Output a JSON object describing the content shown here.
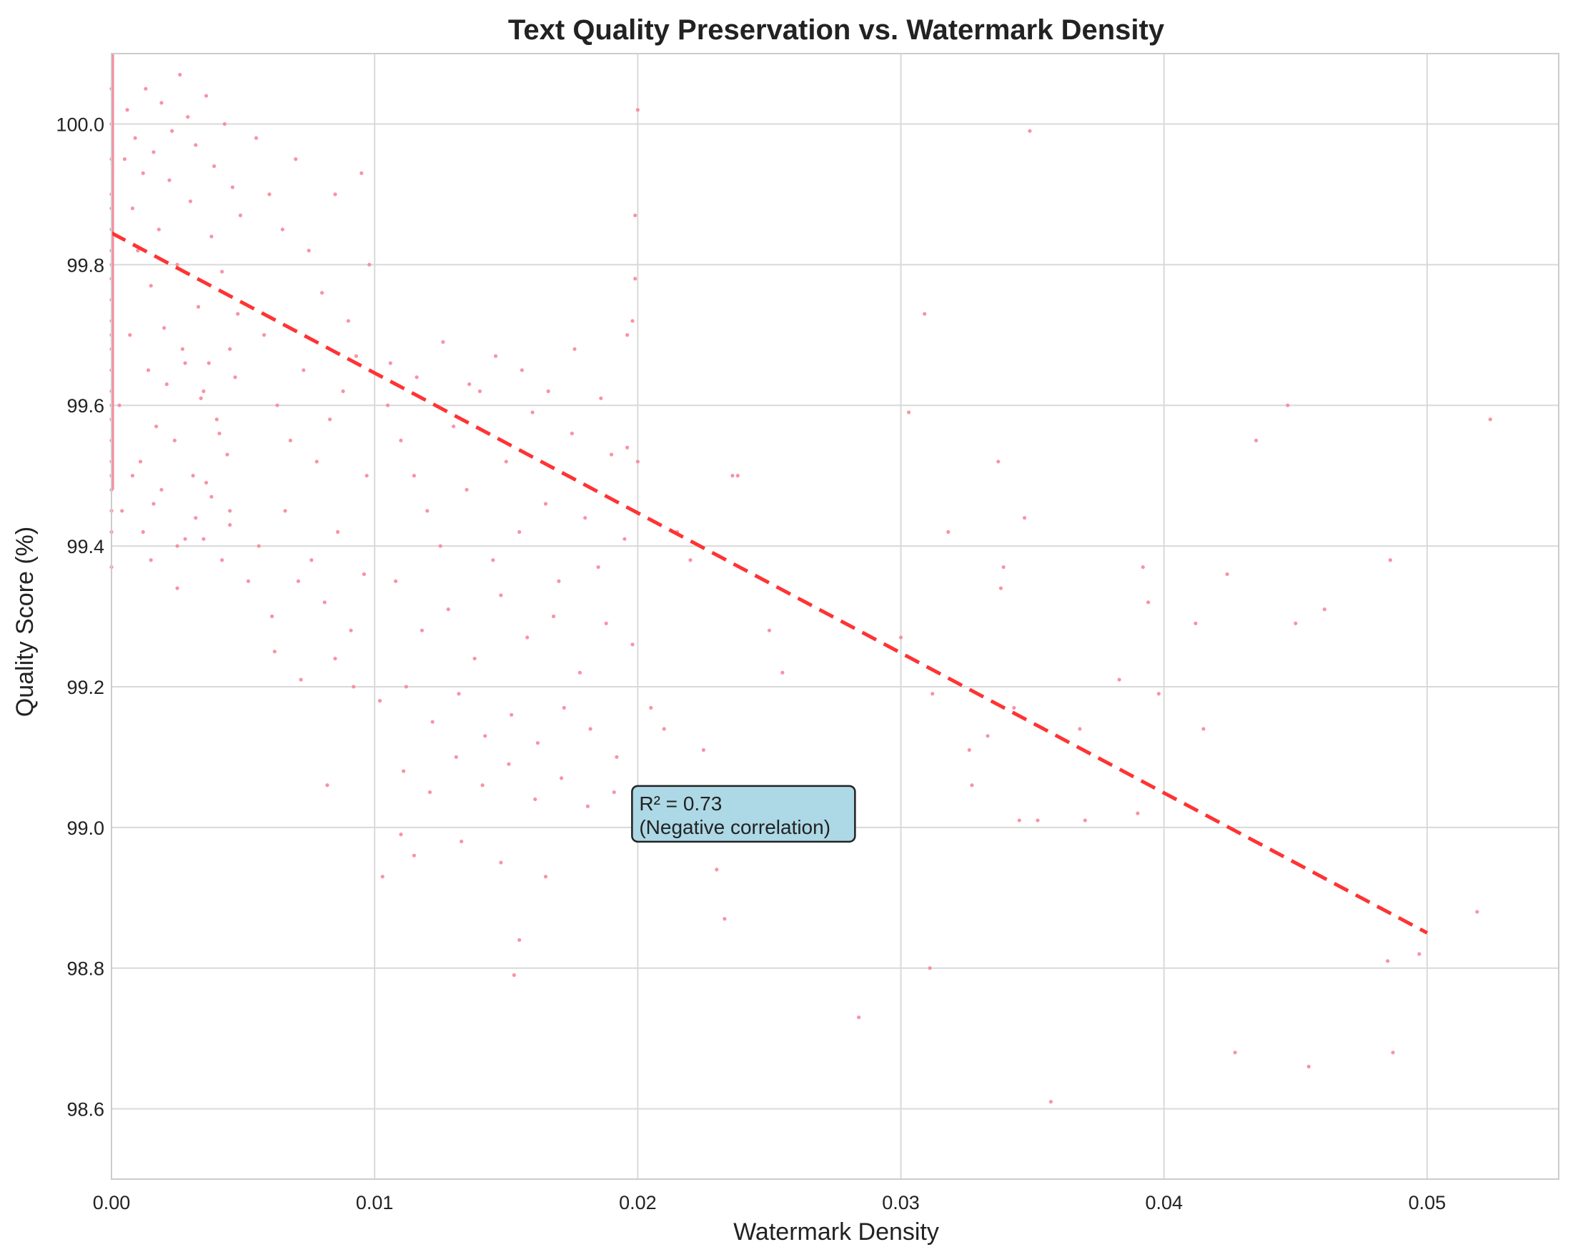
{
  "chart_data": {
    "type": "scatter",
    "title": "Text Quality Preservation vs. Watermark Density",
    "xlabel": "Watermark Density",
    "ylabel": "Quality Score (%)",
    "xlim": [
      0,
      0.055
    ],
    "ylim": [
      98.5,
      100.1
    ],
    "x_ticks": [
      0.0,
      0.01,
      0.02,
      0.03,
      0.04,
      0.05
    ],
    "x_tick_labels": [
      "0.00",
      "0.01",
      "0.02",
      "0.03",
      "0.04",
      "0.05"
    ],
    "y_ticks": [
      98.6,
      98.8,
      99.0,
      99.2,
      99.4,
      99.6,
      99.8,
      100.0
    ],
    "y_tick_labels": [
      "98.6",
      "98.8",
      "99.0",
      "99.2",
      "99.4",
      "99.6",
      "99.8",
      "100.0"
    ],
    "grid": true,
    "point_color": "#f7879a",
    "trend_color": "#ff3333",
    "annotation_bg": "#add8e6",
    "series": [
      {
        "kind": "points",
        "x": [
          0.0,
          0.0,
          0.0,
          0.0,
          0.0,
          0.0,
          0.0,
          0.0,
          0.0,
          0.0,
          0.0,
          0.0,
          0.0,
          0.0,
          0.0,
          0.0,
          0.0,
          0.0,
          0.0,
          0.0,
          0.0,
          0.0,
          0.0,
          0.0,
          0.0005,
          0.0008,
          0.001,
          0.0012,
          0.0015,
          0.0018,
          0.002,
          0.0022,
          0.0025,
          0.0028,
          0.003,
          0.0033,
          0.0035,
          0.0038,
          0.004,
          0.0042,
          0.0045,
          0.0048,
          0.0003,
          0.0007,
          0.0011,
          0.0014,
          0.0017,
          0.0021,
          0.0024,
          0.0027,
          0.0031,
          0.0034,
          0.0037,
          0.0041,
          0.0044,
          0.0047,
          0.0006,
          0.0009,
          0.0013,
          0.0016,
          0.0019,
          0.0023,
          0.0026,
          0.0029,
          0.0032,
          0.0036,
          0.0039,
          0.0043,
          0.0046,
          0.0049,
          0.0004,
          0.0012,
          0.0019,
          0.0025,
          0.0032,
          0.0038,
          0.0045,
          0.0008,
          0.0016,
          0.0028,
          0.0036,
          0.0042,
          0.0055,
          0.006,
          0.0065,
          0.007,
          0.0075,
          0.008,
          0.0085,
          0.009,
          0.0095,
          0.0098,
          0.0058,
          0.0063,
          0.0068,
          0.0073,
          0.0078,
          0.0083,
          0.0088,
          0.0093,
          0.0097,
          0.0056,
          0.0066,
          0.0076,
          0.0086,
          0.0096,
          0.0061,
          0.0071,
          0.0081,
          0.0091,
          0.0025,
          0.0035,
          0.0045,
          0.0052,
          0.0062,
          0.0072,
          0.0082,
          0.0092,
          0.0015,
          0.0085,
          0.0105,
          0.011,
          0.0115,
          0.012,
          0.0125,
          0.013,
          0.0135,
          0.014,
          0.0145,
          0.015,
          0.0155,
          0.016,
          0.0165,
          0.017,
          0.0175,
          0.018,
          0.0185,
          0.019,
          0.0195,
          0.0108,
          0.0118,
          0.0128,
          0.0138,
          0.0148,
          0.0158,
          0.0168,
          0.0178,
          0.0188,
          0.0198,
          0.0102,
          0.0112,
          0.0122,
          0.0132,
          0.0142,
          0.0152,
          0.0162,
          0.0172,
          0.0182,
          0.0192,
          0.0106,
          0.0116,
          0.0126,
          0.0136,
          0.0146,
          0.0156,
          0.0166,
          0.0176,
          0.0186,
          0.0196,
          0.0111,
          0.0121,
          0.0131,
          0.0141,
          0.0151,
          0.0161,
          0.0171,
          0.0181,
          0.0191,
          0.011,
          0.0115,
          0.0103,
          0.0155,
          0.0153,
          0.0133,
          0.0148,
          0.0165,
          0.02,
          0.0199,
          0.0199,
          0.0198,
          0.0196,
          0.02,
          0.0205,
          0.021,
          0.0215,
          0.022,
          0.0225,
          0.023,
          0.0233,
          0.0236,
          0.0238,
          0.025,
          0.0255,
          0.0284,
          0.03,
          0.0303,
          0.0309,
          0.0311,
          0.0312,
          0.0318,
          0.0326,
          0.0327,
          0.0333,
          0.0337,
          0.0338,
          0.0339,
          0.0343,
          0.0345,
          0.0347,
          0.0349,
          0.0352,
          0.0357,
          0.0368,
          0.037,
          0.0383,
          0.039,
          0.0392,
          0.0394,
          0.0398,
          0.0412,
          0.0415,
          0.0424,
          0.0427,
          0.0435,
          0.0447,
          0.045,
          0.0455,
          0.0461,
          0.0485,
          0.0486,
          0.0487,
          0.0497,
          0.0519,
          0.0524
        ],
        "y": [
          99.9,
          99.85,
          99.8,
          99.75,
          99.7,
          99.65,
          99.6,
          99.55,
          99.5,
          99.45,
          99.95,
          100.0,
          99.88,
          99.82,
          99.78,
          99.72,
          99.68,
          99.62,
          99.58,
          99.52,
          99.48,
          99.42,
          99.37,
          100.05,
          99.95,
          99.88,
          99.82,
          99.93,
          99.77,
          99.85,
          99.71,
          99.92,
          99.8,
          99.66,
          99.89,
          99.74,
          99.62,
          99.84,
          99.58,
          99.79,
          99.68,
          99.73,
          99.6,
          99.7,
          99.52,
          99.65,
          99.57,
          99.63,
          99.55,
          99.68,
          99.5,
          99.61,
          99.66,
          99.56,
          99.53,
          99.64,
          100.02,
          99.98,
          100.05,
          99.96,
          100.03,
          99.99,
          100.07,
          100.01,
          99.97,
          100.04,
          99.94,
          100.0,
          99.91,
          99.87,
          99.45,
          99.42,
          99.48,
          99.4,
          99.44,
          99.47,
          99.43,
          99.5,
          99.46,
          99.41,
          99.49,
          99.38,
          99.98,
          99.9,
          99.85,
          99.95,
          99.82,
          99.76,
          99.9,
          99.72,
          99.93,
          99.8,
          99.7,
          99.6,
          99.55,
          99.65,
          99.52,
          99.58,
          99.62,
          99.67,
          99.5,
          99.4,
          99.45,
          99.38,
          99.42,
          99.36,
          99.3,
          99.35,
          99.32,
          99.28,
          99.34,
          99.41,
          99.45,
          99.35,
          99.25,
          99.21,
          99.06,
          99.2,
          99.38,
          99.24,
          99.6,
          99.55,
          99.5,
          99.45,
          99.4,
          99.57,
          99.48,
          99.62,
          99.38,
          99.52,
          99.42,
          99.59,
          99.46,
          99.35,
          99.56,
          99.44,
          99.37,
          99.53,
          99.41,
          99.35,
          99.28,
          99.31,
          99.24,
          99.33,
          99.27,
          99.3,
          99.22,
          99.29,
          99.26,
          99.18,
          99.2,
          99.15,
          99.19,
          99.13,
          99.16,
          99.12,
          99.17,
          99.14,
          99.1,
          99.66,
          99.64,
          99.69,
          99.63,
          99.67,
          99.65,
          99.62,
          99.68,
          99.61,
          99.7,
          99.08,
          99.05,
          99.1,
          99.06,
          99.09,
          99.04,
          99.07,
          99.03,
          99.05,
          98.99,
          98.96,
          98.93,
          98.84,
          98.79,
          98.98,
          98.95,
          98.93,
          100.02,
          99.87,
          99.78,
          99.72,
          99.54,
          99.52,
          99.17,
          99.14,
          99.42,
          99.38,
          99.11,
          98.94,
          98.87,
          99.5,
          99.5,
          99.28,
          99.22,
          98.73,
          99.27,
          99.59,
          99.73,
          98.8,
          99.19,
          99.42,
          99.11,
          99.06,
          99.13,
          99.52,
          99.34,
          99.37,
          99.17,
          99.01,
          99.44,
          99.99,
          99.01,
          98.61,
          99.14,
          99.01,
          99.21,
          99.02,
          99.37,
          99.32,
          99.19,
          99.29,
          99.14,
          99.36,
          98.68,
          99.55,
          99.6,
          99.29,
          98.66,
          99.31,
          98.81,
          99.38,
          98.68,
          98.82,
          98.88,
          99.58
        ]
      },
      {
        "kind": "trend",
        "x": [
          0.0,
          0.05
        ],
        "y": [
          99.845,
          98.85
        ]
      }
    ],
    "annotation": {
      "lines": [
        "R² = 0.73",
        "(Negative correlation)"
      ],
      "x": 0.02,
      "y": 99.0
    }
  }
}
